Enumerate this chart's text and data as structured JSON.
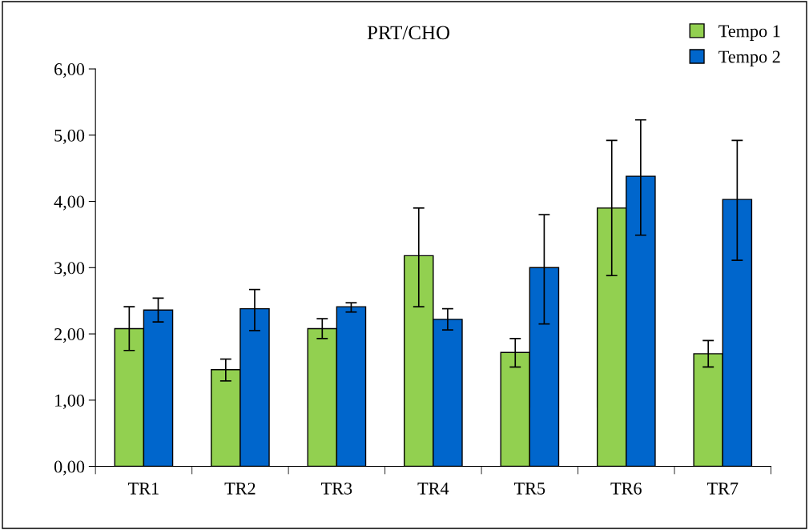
{
  "chart_data": {
    "type": "bar",
    "title": "PRT/CHO",
    "categories": [
      "TR1",
      "TR2",
      "TR3",
      "TR4",
      "TR5",
      "TR6",
      "TR7"
    ],
    "series": [
      {
        "name": "Tempo 1",
        "color": "#92d050",
        "values": [
          2.08,
          1.46,
          2.08,
          3.18,
          1.72,
          3.9,
          1.7
        ],
        "errors": [
          [
            1.75,
            2.41
          ],
          [
            1.29,
            1.62
          ],
          [
            1.93,
            2.23
          ],
          [
            2.41,
            3.9
          ],
          [
            1.5,
            1.93
          ],
          [
            2.88,
            4.92
          ],
          [
            1.5,
            1.9
          ]
        ]
      },
      {
        "name": "Tempo 2",
        "color": "#0066cc",
        "values": [
          2.36,
          2.38,
          2.41,
          2.22,
          3.0,
          4.38,
          4.03
        ],
        "errors": [
          [
            2.18,
            2.54
          ],
          [
            2.05,
            2.67
          ],
          [
            2.33,
            2.47
          ],
          [
            2.06,
            2.38
          ],
          [
            2.15,
            3.8
          ],
          [
            3.49,
            5.23
          ],
          [
            3.11,
            4.92
          ]
        ]
      }
    ],
    "ylim": [
      0,
      6
    ],
    "yticks": [
      {
        "value": 0,
        "label": "0,00"
      },
      {
        "value": 1,
        "label": "1,00"
      },
      {
        "value": 2,
        "label": "2,00"
      },
      {
        "value": 3,
        "label": "3,00"
      },
      {
        "value": 4,
        "label": "4,00"
      },
      {
        "value": 5,
        "label": "5,00"
      },
      {
        "value": 6,
        "label": "6,00"
      }
    ],
    "grid": false,
    "legend": "top right"
  }
}
